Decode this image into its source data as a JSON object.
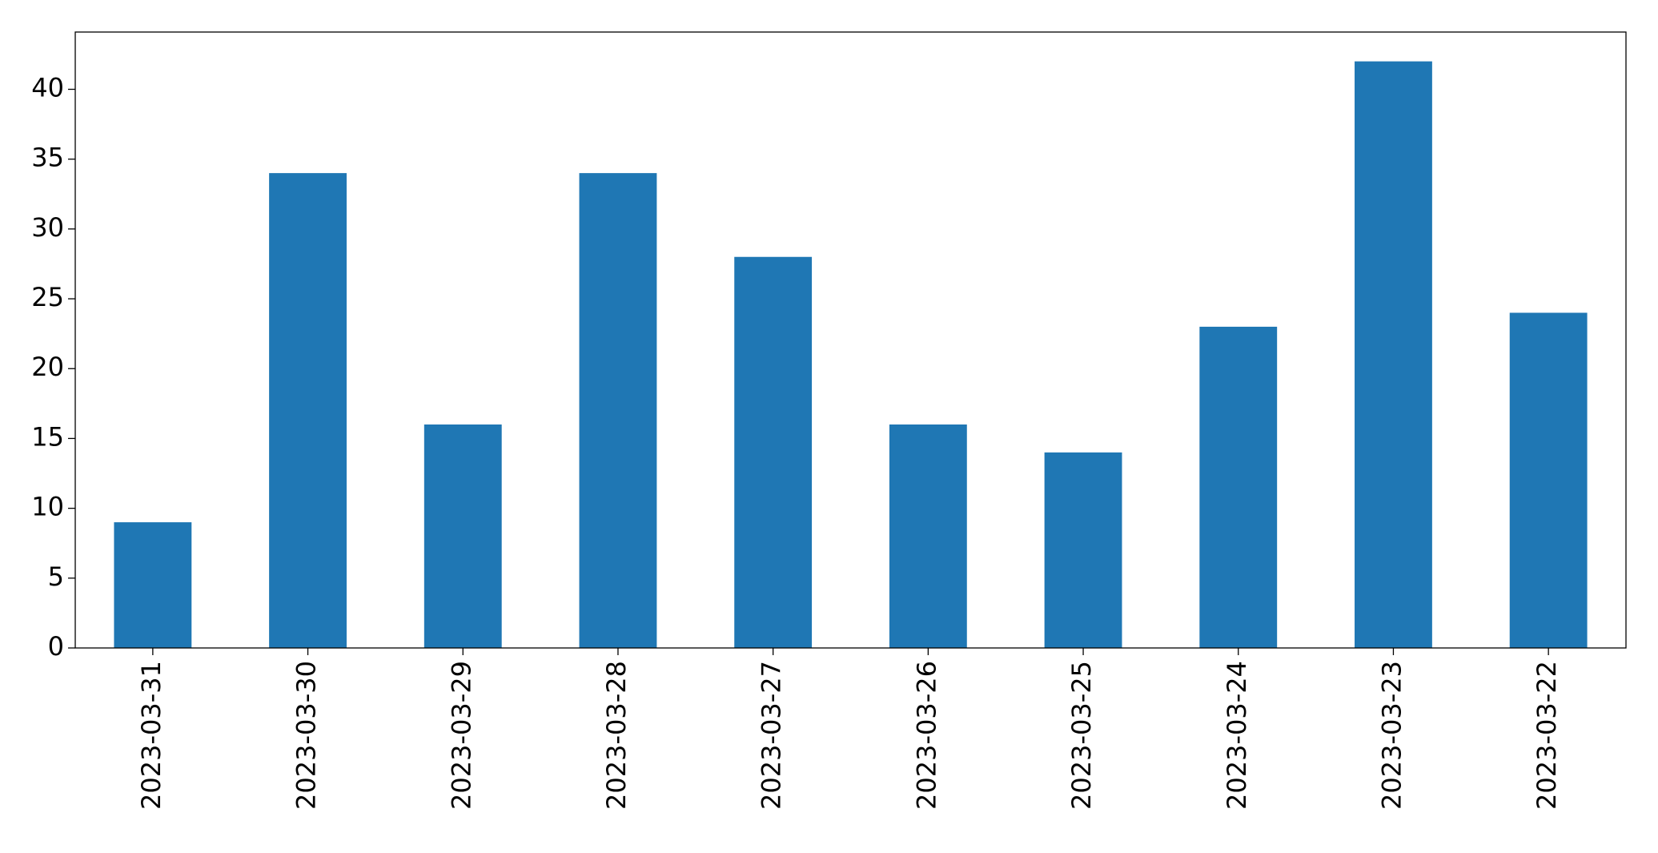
{
  "chart_data": {
    "type": "bar",
    "categories": [
      "2023-03-31",
      "2023-03-30",
      "2023-03-29",
      "2023-03-28",
      "2023-03-27",
      "2023-03-26",
      "2023-03-25",
      "2023-03-24",
      "2023-03-23",
      "2023-03-22"
    ],
    "values": [
      9,
      34,
      16,
      34,
      28,
      16,
      14,
      23,
      42,
      24
    ],
    "color": "#1f77b4",
    "ylim": [
      0,
      44.1
    ],
    "yticks": [
      0,
      5,
      10,
      15,
      20,
      25,
      30,
      35,
      40
    ],
    "grid": false
  }
}
